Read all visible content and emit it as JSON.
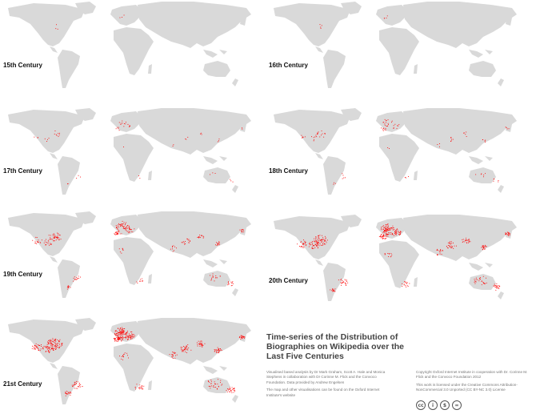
{
  "maps": [
    {
      "label": "15th Century",
      "density": 0.18
    },
    {
      "label": "16th Century",
      "density": 0.22
    },
    {
      "label": "17th Century",
      "density": 0.32
    },
    {
      "label": "18th Century",
      "density": 0.42
    },
    {
      "label": "19th Century",
      "density": 0.7
    },
    {
      "label": "20th Century",
      "density": 0.9
    },
    {
      "label": "21st Century",
      "density": 1.0
    }
  ],
  "title": {
    "line1": "Time-series of the Distribution of",
    "line2": "Biographies on Wikipedia over the",
    "line3": "Last Five Centuries"
  },
  "credits": {
    "left1": "Visualised based analysis by Dr Mark Graham, Scott A. Hale and Monica",
    "left2": "Stephens in collaboration with Dr Corinne M. Flick and the Convoco",
    "left3": "Foundation. Data provided by Andrew Engelsen",
    "left4": "The map and other visualisations can be found on the Oxford Internet",
    "left5": "Institute's website",
    "right1": "Copyright Oxford Internet Institute in cooperation with Dr. Corinne M.",
    "right2": "Flick and the Convoco Foundation 2012",
    "right3": "This work is licensed under the Creative Commons Attribution-",
    "right4": "NonCommercial 3.0 Unported (CC BY-NC 3.0) License"
  },
  "license_icons": [
    "cc-icon",
    "by-icon",
    "nc-icon",
    "nd-icon"
  ],
  "colors": {
    "land": "#d9d9d9",
    "dots": "#ff0000",
    "text": "#444444"
  }
}
